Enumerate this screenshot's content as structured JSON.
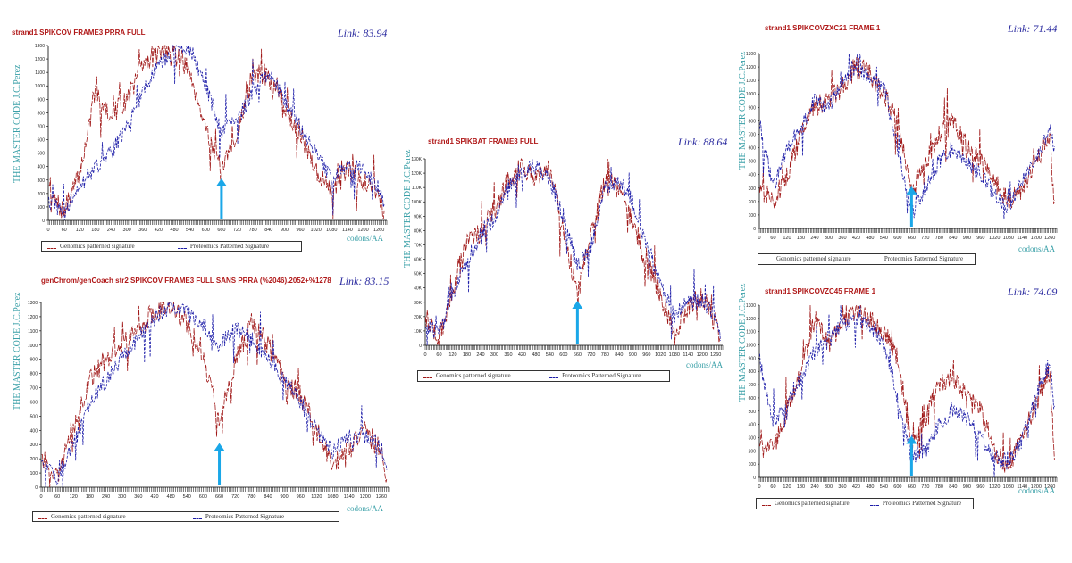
{
  "figure": {
    "x_axis_label": "codons/AA",
    "y_axis_label": "THE MASTER CODE J.C.Perez",
    "legend_genomics": "Genomics patterned signature",
    "legend_proteomics": "Proteomics Patterned Signature",
    "colors": {
      "genomics": "#a01818",
      "proteomics": "#1c1ca8",
      "arrow": "#1aa7e8",
      "axis_text": "#3aa0a8",
      "title": "#b01818"
    }
  },
  "chart_data": [
    {
      "type": "line",
      "title": "strand1 SPIKCOV FRAME3 PRRA FULL",
      "link": "Link: 83.94",
      "ylim": [
        0,
        1300
      ],
      "y_ticks": [
        "0",
        "100",
        "200",
        "300",
        "400",
        "500",
        "600",
        "700",
        "800",
        "900",
        "1000",
        "1100",
        "1200",
        "1300"
      ],
      "xlim": [
        0,
        1290
      ],
      "x_ticks": [
        "0",
        "60",
        "120",
        "180",
        "240",
        "300",
        "360",
        "420",
        "480",
        "540",
        "600",
        "660",
        "720",
        "780",
        "840",
        "900",
        "960",
        "1020",
        "1080",
        "1140",
        "1200",
        "1260"
      ],
      "arrow_x": 660,
      "series": [
        {
          "name": "Genomics patterned signature",
          "x": [
            0,
            60,
            120,
            180,
            240,
            300,
            360,
            420,
            480,
            540,
            600,
            660,
            720,
            780,
            840,
            900,
            960,
            1020,
            1080,
            1140,
            1200,
            1260,
            1280
          ],
          "values": [
            200,
            60,
            350,
            950,
            780,
            900,
            1150,
            1250,
            1270,
            1100,
            700,
            350,
            650,
            1100,
            1050,
            850,
            650,
            380,
            200,
            380,
            300,
            200,
            40
          ]
        },
        {
          "name": "Proteomics Patterned Signature",
          "x": [
            0,
            60,
            120,
            180,
            240,
            300,
            360,
            420,
            480,
            540,
            600,
            660,
            720,
            780,
            840,
            900,
            960,
            1020,
            1080,
            1140,
            1200,
            1260,
            1280
          ],
          "values": [
            150,
            50,
            250,
            400,
            500,
            700,
            950,
            1150,
            1250,
            1280,
            1000,
            650,
            750,
            950,
            1100,
            900,
            700,
            500,
            300,
            420,
            380,
            250,
            80
          ]
        }
      ]
    },
    {
      "type": "line",
      "title": "genChrom/genCoach str2  SPIKCOV FRAME3 FULL SANS PRRA  (%2046).2052+%1278",
      "link": "Link: 83.15",
      "ylim": [
        0,
        1300
      ],
      "y_ticks": [
        "0",
        "100",
        "200",
        "300",
        "400",
        "500",
        "600",
        "700",
        "800",
        "900",
        "1000",
        "1100",
        "1200",
        "1300"
      ],
      "xlim": [
        0,
        1290
      ],
      "x_ticks": [
        "0",
        "60",
        "120",
        "180",
        "240",
        "300",
        "360",
        "420",
        "480",
        "540",
        "600",
        "660",
        "720",
        "780",
        "840",
        "900",
        "960",
        "1020",
        "1080",
        "1140",
        "1200",
        "1260"
      ],
      "arrow_x": 660,
      "series": [
        {
          "name": "Genomics patterned signature",
          "x": [
            0,
            60,
            120,
            180,
            240,
            300,
            360,
            420,
            480,
            540,
            600,
            660,
            720,
            780,
            840,
            900,
            960,
            1020,
            1080,
            1140,
            1200,
            1260,
            1280
          ],
          "values": [
            200,
            80,
            400,
            750,
            900,
            1000,
            1100,
            1250,
            1280,
            1150,
            900,
            480,
            900,
            1150,
            1000,
            750,
            650,
            400,
            150,
            300,
            400,
            250,
            40
          ]
        },
        {
          "name": "Proteomics Patterned Signature",
          "x": [
            0,
            60,
            120,
            180,
            240,
            300,
            360,
            420,
            480,
            540,
            600,
            660,
            720,
            780,
            840,
            900,
            960,
            1020,
            1080,
            1140,
            1200,
            1260,
            1280
          ],
          "values": [
            180,
            60,
            300,
            600,
            750,
            900,
            1050,
            1200,
            1280,
            1220,
            1150,
            1000,
            1120,
            1050,
            900,
            750,
            600,
            400,
            250,
            350,
            380,
            280,
            80
          ]
        }
      ]
    },
    {
      "type": "line",
      "title": "strand1 SPIKBAT FRAME3 FULL",
      "link": "Link: 88.64",
      "ylim": [
        0,
        130000
      ],
      "y_ticks": [
        "0",
        "10K",
        "20K",
        "30K",
        "40K",
        "50K",
        "60K",
        "70K",
        "80K",
        "90K",
        "100K",
        "110K",
        "120K",
        "130K"
      ],
      "xlim": [
        0,
        1290
      ],
      "x_ticks": [
        "0",
        "60",
        "120",
        "180",
        "240",
        "300",
        "360",
        "420",
        "480",
        "540",
        "600",
        "660",
        "720",
        "780",
        "840",
        "900",
        "960",
        "1020",
        "1080",
        "1140",
        "1200",
        "1260"
      ],
      "arrow_x": 660,
      "series": [
        {
          "name": "Genomics patterned signature",
          "x": [
            0,
            60,
            120,
            180,
            240,
            300,
            360,
            420,
            480,
            540,
            600,
            660,
            720,
            780,
            840,
            900,
            960,
            1020,
            1080,
            1140,
            1200,
            1260,
            1280
          ],
          "values": [
            20000,
            5000,
            40000,
            70000,
            80000,
            95000,
            115000,
            125000,
            118000,
            122000,
            80000,
            35000,
            80000,
            115000,
            110000,
            85000,
            60000,
            35000,
            10000,
            25000,
            35000,
            15000,
            5000
          ]
        },
        {
          "name": "Proteomics Patterned Signature",
          "x": [
            0,
            60,
            120,
            180,
            240,
            300,
            360,
            420,
            480,
            540,
            600,
            660,
            720,
            780,
            840,
            900,
            960,
            1020,
            1080,
            1140,
            1200,
            1260,
            1280
          ],
          "values": [
            15000,
            8000,
            35000,
            60000,
            75000,
            90000,
            110000,
            120000,
            125000,
            115000,
            90000,
            55000,
            70000,
            110000,
            115000,
            100000,
            70000,
            45000,
            20000,
            30000,
            30000,
            20000,
            8000
          ]
        }
      ]
    },
    {
      "type": "line",
      "title": "strand1 SPIKCOVZXC21 FRAME 1",
      "link": "Link: 71.44",
      "ylim": [
        0,
        1300
      ],
      "y_ticks": [
        "0",
        "100",
        "200",
        "300",
        "400",
        "500",
        "600",
        "700",
        "800",
        "900",
        "1000",
        "1100",
        "1200",
        "1300"
      ],
      "xlim": [
        0,
        1290
      ],
      "x_ticks": [
        "0",
        "60",
        "120",
        "180",
        "240",
        "300",
        "360",
        "420",
        "480",
        "540",
        "600",
        "660",
        "720",
        "780",
        "840",
        "900",
        "960",
        "1020",
        "1080",
        "1140",
        "1200",
        "1260"
      ],
      "arrow_x": 660,
      "series": [
        {
          "name": "Genomics patterned signature",
          "x": [
            0,
            60,
            120,
            180,
            240,
            300,
            360,
            420,
            480,
            540,
            600,
            660,
            720,
            780,
            840,
            900,
            960,
            1020,
            1080,
            1140,
            1200,
            1260,
            1280
          ],
          "values": [
            300,
            200,
            400,
            700,
            900,
            950,
            1050,
            1200,
            1150,
            1000,
            800,
            250,
            500,
            700,
            800,
            600,
            500,
            350,
            200,
            300,
            500,
            700,
            150
          ]
        },
        {
          "name": "Proteomics Patterned Signature",
          "x": [
            0,
            60,
            120,
            180,
            240,
            300,
            360,
            420,
            480,
            540,
            600,
            660,
            720,
            780,
            840,
            900,
            960,
            1020,
            1080,
            1140,
            1200,
            1260,
            1280
          ],
          "values": [
            800,
            300,
            600,
            750,
            950,
            900,
            1100,
            1200,
            1100,
            1050,
            600,
            100,
            300,
            500,
            600,
            500,
            400,
            250,
            150,
            350,
            500,
            750,
            600
          ]
        }
      ]
    },
    {
      "type": "line",
      "title": "strand1 SPIKCOVZC45 FRAME 1",
      "link": "Link: 74.09",
      "ylim": [
        0,
        1300
      ],
      "y_ticks": [
        "0",
        "100",
        "200",
        "300",
        "400",
        "500",
        "600",
        "700",
        "800",
        "900",
        "1000",
        "1100",
        "1200",
        "1300"
      ],
      "xlim": [
        0,
        1290
      ],
      "x_ticks": [
        "0",
        "60",
        "120",
        "180",
        "240",
        "300",
        "360",
        "420",
        "480",
        "540",
        "600",
        "660",
        "720",
        "780",
        "840",
        "900",
        "960",
        "1020",
        "1080",
        "1140",
        "1200",
        "1260"
      ],
      "arrow_x": 660,
      "series": [
        {
          "name": "Genomics patterned signature",
          "x": [
            0,
            60,
            120,
            180,
            240,
            300,
            360,
            420,
            480,
            540,
            600,
            660,
            720,
            780,
            840,
            900,
            960,
            1020,
            1080,
            1140,
            1200,
            1260,
            1280
          ],
          "values": [
            300,
            200,
            500,
            800,
            1200,
            1000,
            1150,
            1250,
            1200,
            1100,
            900,
            250,
            450,
            700,
            750,
            600,
            500,
            200,
            80,
            300,
            550,
            800,
            150
          ]
        },
        {
          "name": "Proteomics Patterned Signature",
          "x": [
            0,
            60,
            120,
            180,
            240,
            300,
            360,
            420,
            480,
            540,
            600,
            660,
            720,
            780,
            840,
            900,
            960,
            1020,
            1080,
            1140,
            1200,
            1260,
            1280
          ],
          "values": [
            900,
            400,
            550,
            750,
            950,
            1050,
            1150,
            1200,
            1150,
            1000,
            600,
            150,
            200,
            400,
            500,
            450,
            300,
            150,
            100,
            300,
            600,
            900,
            500
          ]
        }
      ]
    }
  ]
}
